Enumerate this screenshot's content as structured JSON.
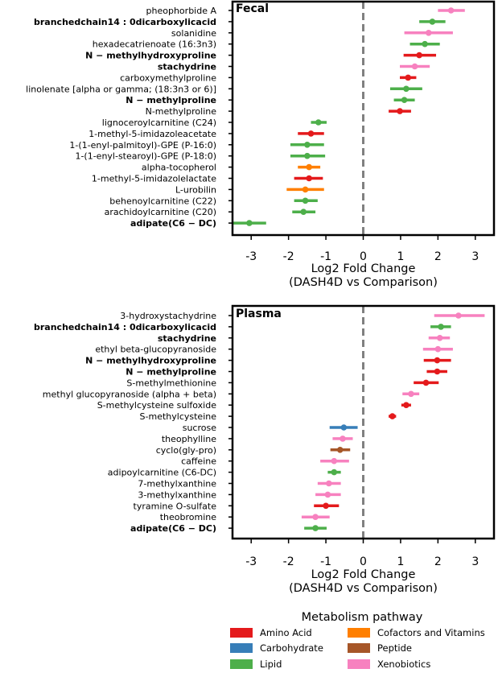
{
  "colors": {
    "Amino Acid": "#e41a1c",
    "Carbohydrate": "#377eb8",
    "Lipid": "#4daf4a",
    "Cofactors and Vitamins": "#ff7f00",
    "Peptide": "#a65628",
    "Xenobiotics": "#f781bf"
  },
  "chart_data": [
    {
      "type": "forest",
      "title": "Fecal",
      "xlabel": "Log2 Fold Change",
      "xlabel2": "(DASH4D vs Comparison)",
      "xlim": [
        -3.5,
        3.5
      ],
      "xticks": [
        -3,
        -2,
        -1,
        0,
        1,
        2,
        3
      ],
      "reference_line": 0,
      "points": [
        {
          "label": "pheophorbide A",
          "bold": false,
          "pathway": "Xenobiotics",
          "value": 2.35,
          "low": 2.0,
          "high": 2.72
        },
        {
          "label": "branchedchain14 : 0dicarboxylicacid",
          "bold": true,
          "pathway": "Lipid",
          "value": 1.85,
          "low": 1.5,
          "high": 2.2
        },
        {
          "label": "solanidine",
          "bold": false,
          "pathway": "Xenobiotics",
          "value": 1.75,
          "low": 1.1,
          "high": 2.4
        },
        {
          "label": "hexadecatrienoate (16:3n3)",
          "bold": false,
          "pathway": "Lipid",
          "value": 1.65,
          "low": 1.25,
          "high": 2.05
        },
        {
          "label": "N − methylhydroxyproline",
          "bold": true,
          "pathway": "Amino Acid",
          "value": 1.5,
          "low": 1.08,
          "high": 1.95
        },
        {
          "label": "stachydrine",
          "bold": true,
          "pathway": "Xenobiotics",
          "value": 1.38,
          "low": 0.98,
          "high": 1.78
        },
        {
          "label": "carboxymethylproline",
          "bold": false,
          "pathway": "Amino Acid",
          "value": 1.2,
          "low": 0.98,
          "high": 1.42
        },
        {
          "label": "linolenate [alpha or gamma; (18:3n3 or 6)]",
          "bold": false,
          "pathway": "Lipid",
          "value": 1.15,
          "low": 0.72,
          "high": 1.58
        },
        {
          "label": "N − methylproline",
          "bold": true,
          "pathway": "Lipid",
          "value": 1.1,
          "low": 0.82,
          "high": 1.38
        },
        {
          "label": "N-methylproline",
          "bold": false,
          "pathway": "Amino Acid",
          "value": 0.98,
          "low": 0.68,
          "high": 1.28
        },
        {
          "label": "lignoceroylcarnitine (C24)",
          "bold": false,
          "pathway": "Lipid",
          "value": -1.2,
          "low": -1.4,
          "high": -0.98
        },
        {
          "label": "1-methyl-5-imidazoleacetate",
          "bold": false,
          "pathway": "Amino Acid",
          "value": -1.4,
          "low": -1.75,
          "high": -1.05
        },
        {
          "label": "1-(1-enyl-palmitoyl)-GPE (P-16:0)",
          "bold": false,
          "pathway": "Lipid",
          "value": -1.5,
          "low": -1.95,
          "high": -1.05
        },
        {
          "label": "1-(1-enyl-stearoyl)-GPE (P-18:0)",
          "bold": false,
          "pathway": "Lipid",
          "value": -1.5,
          "low": -1.95,
          "high": -1.02
        },
        {
          "label": "alpha-tocopherol",
          "bold": false,
          "pathway": "Cofactors and Vitamins",
          "value": -1.45,
          "low": -1.75,
          "high": -1.15
        },
        {
          "label": "1-methyl-5-imidazolelactate",
          "bold": false,
          "pathway": "Amino Acid",
          "value": -1.45,
          "low": -1.85,
          "high": -1.08
        },
        {
          "label": "L-urobilin",
          "bold": false,
          "pathway": "Cofactors and Vitamins",
          "value": -1.55,
          "low": -2.05,
          "high": -1.05
        },
        {
          "label": "behenoylcarnitine (C22)",
          "bold": false,
          "pathway": "Lipid",
          "value": -1.55,
          "low": -1.85,
          "high": -1.22
        },
        {
          "label": "arachidoylcarnitine (C20)",
          "bold": false,
          "pathway": "Lipid",
          "value": -1.6,
          "low": -1.9,
          "high": -1.28
        },
        {
          "label": "adipate(C6 − DC)",
          "bold": true,
          "pathway": "Lipid",
          "value": -3.05,
          "low": -3.5,
          "high": -2.6
        }
      ]
    },
    {
      "type": "forest",
      "title": "Plasma",
      "xlabel": "Log2 Fold Change",
      "xlabel2": "(DASH4D vs Comparison)",
      "xlim": [
        -3.5,
        3.5
      ],
      "xticks": [
        -3,
        -2,
        -1,
        0,
        1,
        2,
        3
      ],
      "reference_line": 0,
      "points": [
        {
          "label": "3-hydroxystachydrine",
          "bold": false,
          "pathway": "Xenobiotics",
          "value": 2.55,
          "low": 1.9,
          "high": 3.25
        },
        {
          "label": "branchedchain14 : 0dicarboxylicacid",
          "bold": true,
          "pathway": "Lipid",
          "value": 2.08,
          "low": 1.8,
          "high": 2.35
        },
        {
          "label": "stachydrine",
          "bold": true,
          "pathway": "Xenobiotics",
          "value": 2.05,
          "low": 1.75,
          "high": 2.32
        },
        {
          "label": "ethyl beta-glucopyranoside",
          "bold": false,
          "pathway": "Xenobiotics",
          "value": 2.0,
          "low": 1.6,
          "high": 2.4
        },
        {
          "label": "N − methylhydroxyproline",
          "bold": true,
          "pathway": "Amino Acid",
          "value": 1.98,
          "low": 1.62,
          "high": 2.35
        },
        {
          "label": "N − methylproline",
          "bold": true,
          "pathway": "Amino Acid",
          "value": 1.98,
          "low": 1.7,
          "high": 2.25
        },
        {
          "label": "S-methylmethionine",
          "bold": false,
          "pathway": "Amino Acid",
          "value": 1.68,
          "low": 1.35,
          "high": 2.02
        },
        {
          "label": "methyl glucopyranoside (alpha + beta)",
          "bold": false,
          "pathway": "Xenobiotics",
          "value": 1.28,
          "low": 1.05,
          "high": 1.5
        },
        {
          "label": "S-methylcysteine sulfoxide",
          "bold": false,
          "pathway": "Amino Acid",
          "value": 1.15,
          "low": 1.02,
          "high": 1.28
        },
        {
          "label": "S-methylcysteine",
          "bold": false,
          "pathway": "Amino Acid",
          "value": 0.78,
          "low": 0.68,
          "high": 0.88
        },
        {
          "label": "sucrose",
          "bold": false,
          "pathway": "Carbohydrate",
          "value": -0.52,
          "low": -0.9,
          "high": -0.15
        },
        {
          "label": "theophylline",
          "bold": false,
          "pathway": "Xenobiotics",
          "value": -0.55,
          "low": -0.82,
          "high": -0.28
        },
        {
          "label": "cyclo(gly-pro)",
          "bold": false,
          "pathway": "Peptide",
          "value": -0.62,
          "low": -0.88,
          "high": -0.35
        },
        {
          "label": "caffeine",
          "bold": false,
          "pathway": "Xenobiotics",
          "value": -0.78,
          "low": -1.15,
          "high": -0.38
        },
        {
          "label": "adipoylcarnitine (C6-DC)",
          "bold": false,
          "pathway": "Lipid",
          "value": -0.78,
          "low": -0.95,
          "high": -0.6
        },
        {
          "label": "7-methylxanthine",
          "bold": false,
          "pathway": "Xenobiotics",
          "value": -0.92,
          "low": -1.22,
          "high": -0.6
        },
        {
          "label": "3-methylxanthine",
          "bold": false,
          "pathway": "Xenobiotics",
          "value": -0.95,
          "low": -1.28,
          "high": -0.6
        },
        {
          "label": "tyramine O-sulfate",
          "bold": false,
          "pathway": "Amino Acid",
          "value": -1.0,
          "low": -1.32,
          "high": -0.65
        },
        {
          "label": "theobromine",
          "bold": false,
          "pathway": "Xenobiotics",
          "value": -1.28,
          "low": -1.65,
          "high": -0.9
        },
        {
          "label": "adipate(C6 − DC)",
          "bold": true,
          "pathway": "Lipid",
          "value": -1.28,
          "low": -1.58,
          "high": -0.98
        }
      ]
    }
  ],
  "legend": {
    "title": "Metabolism pathway",
    "entries": [
      "Amino Acid",
      "Cofactors and Vitamins",
      "Carbohydrate",
      "Peptide",
      "Lipid",
      "Xenobiotics"
    ]
  }
}
